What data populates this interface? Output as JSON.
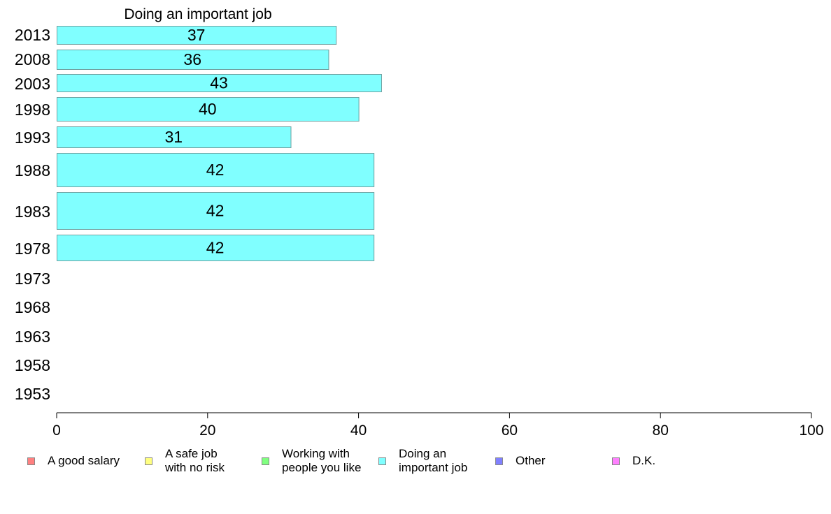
{
  "chart_data": {
    "type": "bar",
    "orientation": "horizontal",
    "title": "Doing an important job",
    "categories": [
      "2013",
      "2008",
      "2003",
      "1998",
      "1993",
      "1988",
      "1983",
      "1978",
      "1973",
      "1968",
      "1963",
      "1958",
      "1953"
    ],
    "series": [
      {
        "name": "Doing an important job",
        "values": [
          37,
          36,
          43,
          40,
          31,
          42,
          42,
          42,
          null,
          null,
          null,
          null,
          null
        ],
        "color": "#80ffff"
      }
    ],
    "data_labels": [
      "37",
      "36",
      "43",
      "40",
      "31",
      "42",
      "42",
      "42",
      "",
      "",
      "",
      "",
      ""
    ],
    "xlim": [
      0,
      100
    ],
    "xticks": [
      0,
      20,
      40,
      60,
      80,
      100
    ],
    "xtick_labels": [
      "0",
      "20",
      "40",
      "60",
      "80",
      "100"
    ],
    "grid": false,
    "legend_position": "bottom"
  },
  "legend": [
    {
      "label": "A good salary",
      "color": "#ff8080"
    },
    {
      "label": "A safe job\nwith no risk",
      "color": "#ffff80"
    },
    {
      "label": "Working with\npeople you like",
      "color": "#80ff80"
    },
    {
      "label": "Doing an\nimportant job",
      "color": "#80ffff"
    },
    {
      "label": "Other",
      "color": "#8080ff"
    },
    {
      "label": "D.K.",
      "color": "#ff80ff"
    }
  ]
}
